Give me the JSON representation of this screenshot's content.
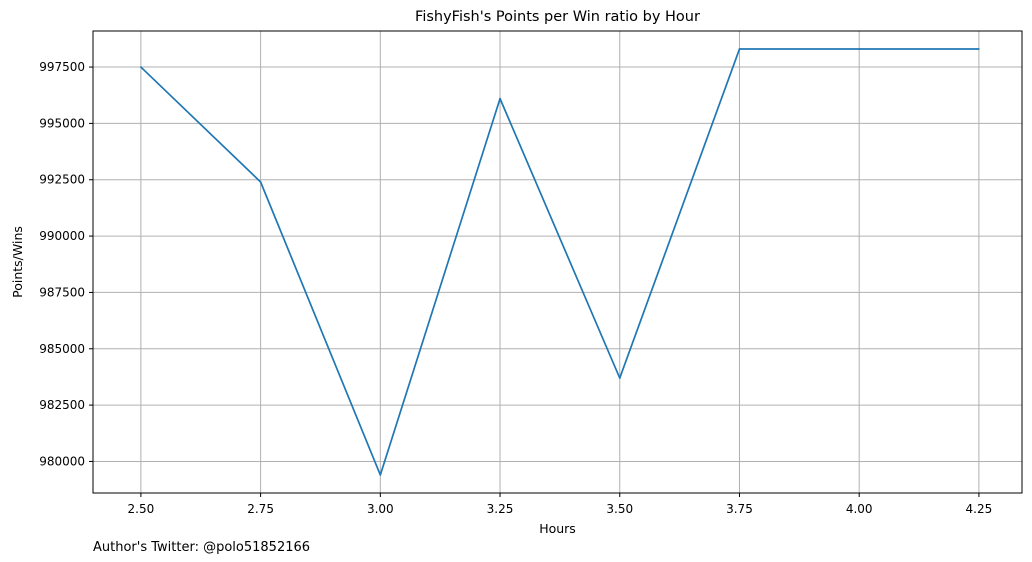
{
  "chart_data": {
    "type": "line",
    "title": "FishyFish's Points per Win ratio by Hour",
    "xlabel": "Hours",
    "ylabel": "Points/Wins",
    "x": [
      2.5,
      2.75,
      3.0,
      3.25,
      3.5,
      3.75,
      4.0,
      4.25
    ],
    "series": [
      {
        "values": [
          997500,
          992400,
          979400,
          996100,
          983700,
          998300,
          998300,
          998300
        ],
        "color": "#1f77b4"
      }
    ],
    "xlim": [
      2.4,
      4.34
    ],
    "ylim": [
      978600,
      999100
    ],
    "x_ticks": [
      "2.50",
      "2.75",
      "3.00",
      "3.25",
      "3.50",
      "3.75",
      "4.00",
      "4.25"
    ],
    "x_tick_values": [
      2.5,
      2.75,
      3.0,
      3.25,
      3.5,
      3.75,
      4.0,
      4.25
    ],
    "y_ticks": [
      "980000",
      "982500",
      "985000",
      "987500",
      "990000",
      "992500",
      "995000",
      "997500"
    ],
    "y_tick_values": [
      980000,
      982500,
      985000,
      987500,
      990000,
      992500,
      995000,
      997500
    ],
    "grid": true,
    "grid_color": "#b0b0b0"
  },
  "footer": {
    "text": "Author's Twitter: @polo51852166"
  }
}
